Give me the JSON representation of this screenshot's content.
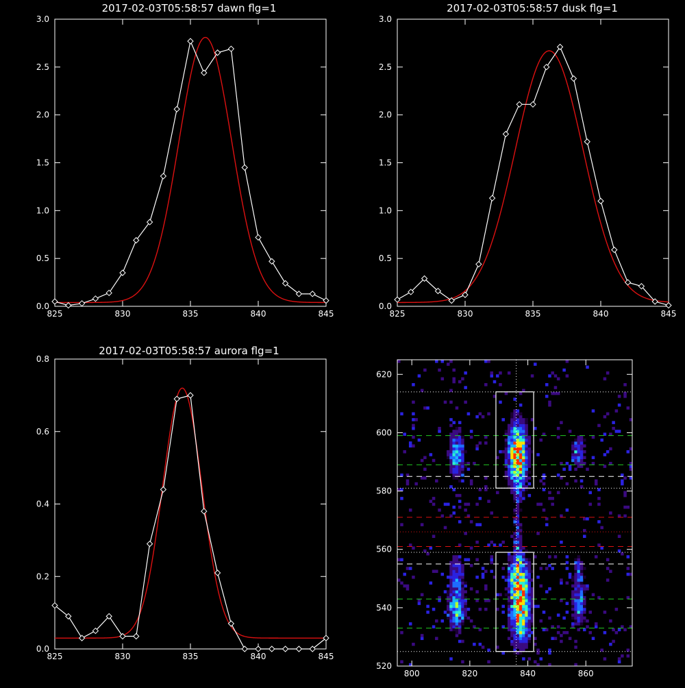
{
  "chart_data": [
    {
      "id": "dawn",
      "type": "line",
      "title": "2017-02-03T05:58:57 dawn flg=1",
      "xlim": [
        825,
        845
      ],
      "ylim": [
        0,
        3
      ],
      "xticks": [
        825,
        830,
        835,
        840,
        845
      ],
      "yticks": [
        0.0,
        0.5,
        1.0,
        1.5,
        2.0,
        2.5,
        3.0
      ],
      "xticks_label": [
        "825",
        "830",
        "835",
        "840",
        "845"
      ],
      "yticks_label": [
        "0.0",
        "0.5",
        "1.0",
        "1.5",
        "2.0",
        "2.5",
        "3.0"
      ],
      "series": [
        {
          "style": "data",
          "color": "#ffffff",
          "x": [
            825,
            826,
            827,
            828,
            829,
            830,
            831,
            832,
            833,
            834,
            835,
            836,
            837,
            838,
            839,
            840,
            841,
            842,
            843,
            844,
            845
          ],
          "y": [
            0.05,
            0.01,
            0.03,
            0.08,
            0.14,
            0.35,
            0.69,
            0.88,
            1.36,
            2.06,
            2.77,
            2.44,
            2.65,
            2.69,
            1.45,
            0.72,
            0.47,
            0.24,
            0.13,
            0.13,
            0.06
          ]
        },
        {
          "style": "fit",
          "color": "#dd1111",
          "model": "gauss",
          "amp": 2.77,
          "mu": 836.1,
          "sigma": 1.95,
          "base": 0.04
        }
      ]
    },
    {
      "id": "dusk",
      "type": "line",
      "title": "2017-02-03T05:58:57 dusk flg=1",
      "xlim": [
        825,
        845
      ],
      "ylim": [
        0,
        3
      ],
      "xticks": [
        825,
        830,
        835,
        840,
        845
      ],
      "yticks": [
        0.0,
        0.5,
        1.0,
        1.5,
        2.0,
        2.5,
        3.0
      ],
      "xticks_label": [
        "825",
        "830",
        "835",
        "840",
        "845"
      ],
      "yticks_label": [
        "0.0",
        "0.5",
        "1.0",
        "1.5",
        "2.0",
        "2.5",
        "3.0"
      ],
      "series": [
        {
          "style": "data",
          "color": "#ffffff",
          "x": [
            825,
            826,
            827,
            828,
            829,
            830,
            831,
            832,
            833,
            834,
            835,
            836,
            837,
            838,
            839,
            840,
            841,
            842,
            843,
            844,
            845
          ],
          "y": [
            0.07,
            0.15,
            0.29,
            0.16,
            0.06,
            0.12,
            0.44,
            1.13,
            1.8,
            2.11,
            2.11,
            2.5,
            2.71,
            2.38,
            1.72,
            1.1,
            0.59,
            0.25,
            0.21,
            0.05,
            0.01
          ]
        },
        {
          "style": "fit",
          "color": "#dd1111",
          "model": "gauss",
          "amp": 2.63,
          "mu": 836.2,
          "sigma": 2.5,
          "base": 0.04
        }
      ]
    },
    {
      "id": "aurora",
      "type": "line",
      "title": "2017-02-03T05:58:57 aurora flg=1",
      "xlim": [
        825,
        845
      ],
      "ylim": [
        0,
        0.8
      ],
      "xticks": [
        825,
        830,
        835,
        840,
        845
      ],
      "yticks": [
        0.0,
        0.2,
        0.4,
        0.6,
        0.8
      ],
      "xticks_label": [
        "825",
        "830",
        "835",
        "840",
        "845"
      ],
      "yticks_label": [
        "0.0",
        "0.2",
        "0.4",
        "0.6",
        "0.8"
      ],
      "series": [
        {
          "style": "data",
          "color": "#ffffff",
          "x": [
            825,
            826,
            827,
            828,
            829,
            830,
            831,
            832,
            833,
            834,
            835,
            836,
            837,
            838,
            839,
            840,
            841,
            842,
            843,
            844,
            845
          ],
          "y": [
            0.12,
            0.09,
            0.03,
            0.05,
            0.09,
            0.035,
            0.035,
            0.29,
            0.44,
            0.69,
            0.7,
            0.38,
            0.21,
            0.07,
            -0.01,
            -0.01,
            -0.01,
            -0.01,
            -0.01,
            -0.01,
            0.03
          ]
        },
        {
          "style": "fit",
          "color": "#dd1111",
          "model": "gauss",
          "amp": 0.69,
          "mu": 834.4,
          "sigma": 1.45,
          "base": 0.03
        }
      ]
    },
    {
      "id": "image",
      "type": "heatmap",
      "xlim": [
        795,
        876
      ],
      "ylim": [
        520,
        625
      ],
      "xticks": [
        800,
        820,
        840,
        860
      ],
      "yticks": [
        520,
        540,
        560,
        580,
        600,
        620
      ],
      "xticks_label": [
        "800",
        "820",
        "840",
        "860"
      ],
      "yticks_label": [
        "520",
        "540",
        "560",
        "580",
        "600",
        "620"
      ],
      "palette": [
        "#1a0033",
        "#3a0a80",
        "#2a22e0",
        "#1f6cff",
        "#19b4ff",
        "#2cf0d0",
        "#b4ff30",
        "#ffe000",
        "#ff3000"
      ],
      "blobs": [
        {
          "x": 836,
          "y": 592,
          "sx": 2.2,
          "sy": 7,
          "amp": 8
        },
        {
          "x": 837,
          "y": 540,
          "sx": 2.2,
          "sy": 8,
          "amp": 7.5
        },
        {
          "x": 836,
          "y": 551,
          "sx": 2.0,
          "sy": 5,
          "amp": 4
        },
        {
          "x": 836,
          "y": 568,
          "sx": 0.8,
          "sy": 10,
          "amp": 2.2
        },
        {
          "x": 815,
          "y": 592,
          "sx": 1.7,
          "sy": 5,
          "amp": 4.5
        },
        {
          "x": 815,
          "y": 540,
          "sx": 1.8,
          "sy": 5,
          "amp": 4.8
        },
        {
          "x": 815,
          "y": 552,
          "sx": 1.6,
          "sy": 4,
          "amp": 2.5
        },
        {
          "x": 857,
          "y": 593,
          "sx": 1.5,
          "sy": 4,
          "amp": 3
        },
        {
          "x": 857,
          "y": 541,
          "sx": 1.5,
          "sy": 5,
          "amp": 3.3
        },
        {
          "x": 857,
          "y": 553,
          "sx": 1.3,
          "sy": 3,
          "amp": 2
        }
      ],
      "boxes": [
        {
          "x0": 829,
          "x1": 842,
          "y0": 581,
          "y1": 614,
          "color": "#ffffff"
        },
        {
          "x0": 829,
          "x1": 842,
          "y0": 525,
          "y1": 559,
          "color": "#ffffff"
        }
      ],
      "vline": {
        "x": 836,
        "color": "#ffffff",
        "style": "dotted"
      },
      "hlines": [
        {
          "y": 614,
          "color": "#ffffff",
          "style": "dotted"
        },
        {
          "y": 599,
          "color": "#22cc22",
          "style": "dashed"
        },
        {
          "y": 589,
          "color": "#22cc22",
          "style": "dashed"
        },
        {
          "y": 585,
          "color": "#ffffff",
          "style": "dashed"
        },
        {
          "y": 581,
          "color": "#ffffff",
          "style": "dotted"
        },
        {
          "y": 571,
          "color": "#dd1111",
          "style": "dashed"
        },
        {
          "y": 566,
          "color": "#dd1111",
          "style": "dotted"
        },
        {
          "y": 561,
          "color": "#dd1111",
          "style": "dashed"
        },
        {
          "y": 559,
          "color": "#ffffff",
          "style": "dotted"
        },
        {
          "y": 555,
          "color": "#ffffff",
          "style": "dashed"
        },
        {
          "y": 543,
          "color": "#22cc22",
          "style": "dashed"
        },
        {
          "y": 533,
          "color": "#22cc22",
          "style": "dashed"
        },
        {
          "y": 525,
          "color": "#ffffff",
          "style": "dotted"
        }
      ]
    }
  ]
}
